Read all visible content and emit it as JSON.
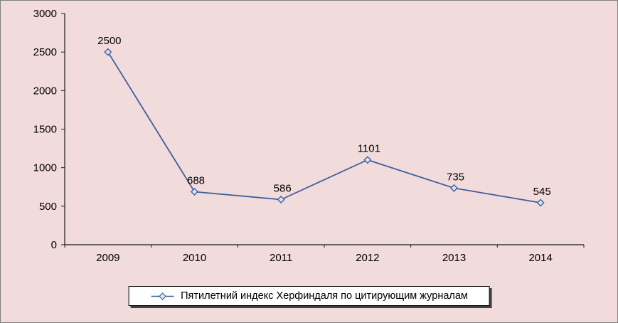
{
  "chart_data": {
    "type": "line",
    "title": "",
    "categories": [
      "2009",
      "2010",
      "2011",
      "2012",
      "2013",
      "2014"
    ],
    "series": [
      {
        "name": "Пятилетний индекс Херфиндаля по цитирующим журналам",
        "values": [
          2500,
          688,
          586,
          1101,
          735,
          545
        ]
      }
    ],
    "xlabel": "",
    "ylabel": "",
    "ylim": [
      0,
      3000
    ],
    "yticks": [
      0,
      500,
      1000,
      1500,
      2000,
      2500,
      3000
    ],
    "grid": false,
    "legend_position": "bottom",
    "data_labels_shown": true,
    "marker_shape": "diamond"
  },
  "colors": {
    "background": "#f2dcdb",
    "series_line": "#3f5f9f",
    "marker_fill": "#dce6f2",
    "axis": "#1a1a1a",
    "text": "#000000",
    "legend_background": "#ffffff",
    "legend_border": "#000000",
    "legend_shadow": "#404040",
    "frame_border": "#7f7f7f"
  }
}
